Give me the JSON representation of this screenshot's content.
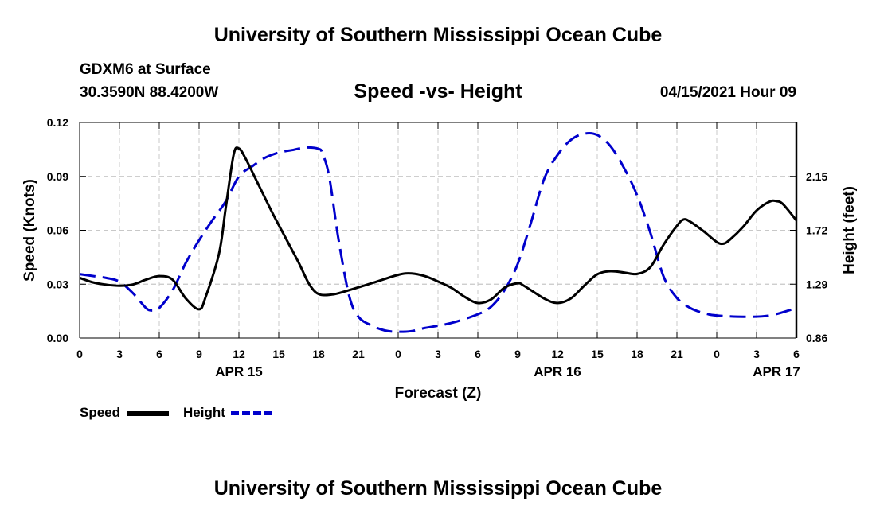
{
  "header": {
    "top_title": "University of Southern Mississippi Ocean Cube",
    "bottom_title": "University of Southern Mississippi Ocean Cube",
    "station": "GDXM6 at Surface",
    "coords": "30.3590N  88.4200W",
    "run_time": "04/15/2021 Hour 09"
  },
  "legend": {
    "speed": "Speed",
    "height": "Height"
  },
  "colors": {
    "speed": "#000000",
    "height": "#0000cc",
    "grid": "#c8c8c8"
  },
  "chart_data": {
    "type": "line",
    "title": "Speed -vs- Height",
    "xlabel": "Forecast (Z)",
    "ylabel_left": "Speed (Knots)",
    "ylabel_right": "Height (feet)",
    "x_range": [
      0,
      54
    ],
    "x_ticks": [
      0,
      3,
      6,
      9,
      12,
      15,
      18,
      21,
      24,
      27,
      30,
      33,
      36,
      39,
      42,
      45,
      48,
      51,
      54
    ],
    "x_tick_labels": [
      "0",
      "3",
      "6",
      "9",
      "12",
      "15",
      "18",
      "21",
      "0",
      "3",
      "6",
      "9",
      "12",
      "15",
      "18",
      "21",
      "0",
      "3",
      "6"
    ],
    "date_labels": [
      {
        "x": 12,
        "label": "APR 15"
      },
      {
        "x": 36,
        "label": "APR 16"
      },
      {
        "x": 52.5,
        "label": "APR 17"
      }
    ],
    "ylim_left": [
      0,
      0.12
    ],
    "y_ticks_left": [
      "0.00",
      "0.03",
      "0.06",
      "0.09",
      "0.12"
    ],
    "ylim_right": [
      0.86,
      2.58
    ],
    "y_ticks_right": [
      "0.86",
      "1.29",
      "1.72",
      "2.15"
    ],
    "grid": true,
    "series": [
      {
        "name": "Speed",
        "axis": "left",
        "style": "solid",
        "points": [
          [
            0,
            0.0335
          ],
          [
            1,
            0.031
          ],
          [
            2,
            0.0297
          ],
          [
            3,
            0.0291
          ],
          [
            4,
            0.0298
          ],
          [
            5,
            0.0325
          ],
          [
            6,
            0.0345
          ],
          [
            7,
            0.0325
          ],
          [
            8,
            0.022
          ],
          [
            9,
            0.016
          ],
          [
            9.5,
            0.023
          ],
          [
            10.5,
            0.047
          ],
          [
            11,
            0.072
          ],
          [
            11.6,
            0.102
          ],
          [
            12,
            0.1055
          ],
          [
            12.5,
            0.1
          ],
          [
            13.5,
            0.085
          ],
          [
            14.5,
            0.07
          ],
          [
            15.5,
            0.056
          ],
          [
            16.5,
            0.042
          ],
          [
            17.3,
            0.03
          ],
          [
            18,
            0.0245
          ],
          [
            19,
            0.0242
          ],
          [
            20,
            0.026
          ],
          [
            22,
            0.0305
          ],
          [
            24,
            0.0352
          ],
          [
            25,
            0.036
          ],
          [
            26,
            0.0345
          ],
          [
            27,
            0.0315
          ],
          [
            28,
            0.028
          ],
          [
            29,
            0.023
          ],
          [
            30,
            0.0195
          ],
          [
            31,
            0.0215
          ],
          [
            32,
            0.028
          ],
          [
            33,
            0.0305
          ],
          [
            33.5,
            0.029
          ],
          [
            35,
            0.022
          ],
          [
            36,
            0.0195
          ],
          [
            37,
            0.022
          ],
          [
            38,
            0.029
          ],
          [
            39,
            0.0355
          ],
          [
            40,
            0.0372
          ],
          [
            41,
            0.0365
          ],
          [
            42,
            0.0357
          ],
          [
            43,
            0.0395
          ],
          [
            44,
            0.052
          ],
          [
            45,
            0.0625
          ],
          [
            45.5,
            0.066
          ],
          [
            46,
            0.0648
          ],
          [
            47,
            0.0595
          ],
          [
            48,
            0.0535
          ],
          [
            48.5,
            0.0525
          ],
          [
            49,
            0.0548
          ],
          [
            50,
            0.062
          ],
          [
            51,
            0.071
          ],
          [
            52,
            0.076
          ],
          [
            52.5,
            0.0762
          ],
          [
            53,
            0.0745
          ],
          [
            54,
            0.0655
          ]
        ]
      },
      {
        "name": "Height",
        "axis": "right",
        "style": "dashed",
        "points": [
          [
            0,
            1.37
          ],
          [
            1,
            1.355
          ],
          [
            2,
            1.34
          ],
          [
            3,
            1.31
          ],
          [
            4,
            1.22
          ],
          [
            5,
            1.1
          ],
          [
            5.5,
            1.08
          ],
          [
            6,
            1.1
          ],
          [
            7,
            1.24
          ],
          [
            8,
            1.46
          ],
          [
            9,
            1.64
          ],
          [
            10,
            1.8
          ],
          [
            11,
            1.95
          ],
          [
            12,
            2.15
          ],
          [
            13,
            2.23
          ],
          [
            14,
            2.3
          ],
          [
            15,
            2.34
          ],
          [
            16,
            2.36
          ],
          [
            17,
            2.38
          ],
          [
            18,
            2.37
          ],
          [
            18.3,
            2.33
          ],
          [
            18.8,
            2.15
          ],
          [
            19.5,
            1.65
          ],
          [
            20.3,
            1.2
          ],
          [
            21,
            1.03
          ],
          [
            22,
            0.96
          ],
          [
            23,
            0.92
          ],
          [
            24,
            0.91
          ],
          [
            25,
            0.915
          ],
          [
            26,
            0.94
          ],
          [
            28,
            0.98
          ],
          [
            30,
            1.05
          ],
          [
            31,
            1.11
          ],
          [
            32,
            1.24
          ],
          [
            33,
            1.45
          ],
          [
            34,
            1.78
          ],
          [
            35,
            2.13
          ],
          [
            36,
            2.32
          ],
          [
            37,
            2.44
          ],
          [
            38,
            2.49
          ],
          [
            39,
            2.48
          ],
          [
            40,
            2.39
          ],
          [
            41,
            2.22
          ],
          [
            42,
            2.0
          ],
          [
            43,
            1.7
          ],
          [
            44,
            1.35
          ],
          [
            45,
            1.18
          ],
          [
            46,
            1.1
          ],
          [
            47,
            1.06
          ],
          [
            48,
            1.04
          ],
          [
            50,
            1.03
          ],
          [
            52,
            1.04
          ],
          [
            54,
            1.1
          ]
        ]
      }
    ]
  }
}
